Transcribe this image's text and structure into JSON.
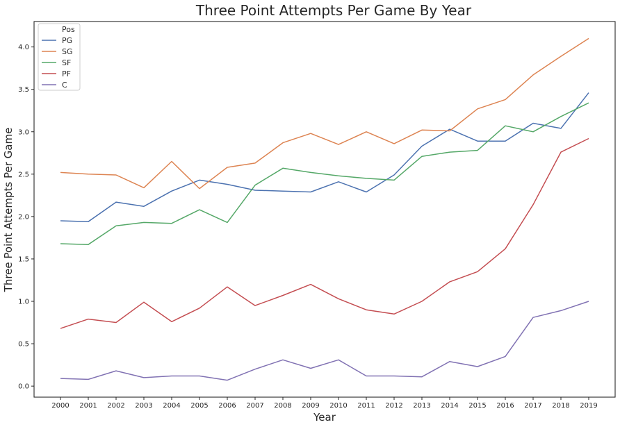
{
  "chart_data": {
    "type": "line",
    "title": "Three Point Attempts Per Game By Year",
    "xlabel": "Year",
    "ylabel": "Three Point Attempts Per Game",
    "x": [
      2000,
      2001,
      2002,
      2003,
      2004,
      2005,
      2006,
      2007,
      2008,
      2009,
      2010,
      2011,
      2012,
      2013,
      2014,
      2015,
      2016,
      2017,
      2018,
      2019
    ],
    "xticks": [
      "2000",
      "2001",
      "2002",
      "2003",
      "2004",
      "2005",
      "2006",
      "2007",
      "2008",
      "2009",
      "2010",
      "2011",
      "2012",
      "2013",
      "2014",
      "2015",
      "2016",
      "2017",
      "2018",
      "2019"
    ],
    "ylim": [
      -0.13,
      4.3
    ],
    "yticks": [
      0.0,
      0.5,
      1.0,
      1.5,
      2.0,
      2.5,
      3.0,
      3.5,
      4.0
    ],
    "ytick_labels": [
      "0.0",
      "0.5",
      "1.0",
      "1.5",
      "2.0",
      "2.5",
      "3.0",
      "3.5",
      "4.0"
    ],
    "grid": false,
    "legend": {
      "title": "Pos",
      "placement": "top-left"
    },
    "series": [
      {
        "name": "PG",
        "color": "#4c72b0",
        "values": [
          1.95,
          1.94,
          2.17,
          2.12,
          2.3,
          2.43,
          2.38,
          2.31,
          2.3,
          2.29,
          2.41,
          2.29,
          2.49,
          2.83,
          3.03,
          2.89,
          2.89,
          3.1,
          3.04,
          3.46
        ]
      },
      {
        "name": "SG",
        "color": "#dd8452",
        "values": [
          2.52,
          2.5,
          2.49,
          2.34,
          2.65,
          2.33,
          2.58,
          2.63,
          2.87,
          2.98,
          2.85,
          3.0,
          2.86,
          3.02,
          3.01,
          3.27,
          3.38,
          3.67,
          3.89,
          4.1
        ]
      },
      {
        "name": "SF",
        "color": "#55a868",
        "values": [
          1.68,
          1.67,
          1.89,
          1.93,
          1.92,
          2.08,
          1.93,
          2.37,
          2.57,
          2.52,
          2.48,
          2.45,
          2.43,
          2.71,
          2.76,
          2.78,
          3.07,
          3.0,
          3.18,
          3.34
        ]
      },
      {
        "name": "PF",
        "color": "#c44e52",
        "values": [
          0.68,
          0.79,
          0.75,
          0.99,
          0.76,
          0.92,
          1.17,
          0.95,
          1.07,
          1.2,
          1.03,
          0.9,
          0.85,
          1.0,
          1.23,
          1.35,
          1.62,
          2.14,
          2.76,
          2.92
        ]
      },
      {
        "name": "C",
        "color": "#8172b3",
        "values": [
          0.09,
          0.08,
          0.18,
          0.1,
          0.12,
          0.12,
          0.07,
          0.2,
          0.31,
          0.21,
          0.31,
          0.12,
          0.12,
          0.11,
          0.29,
          0.23,
          0.35,
          0.81,
          0.89,
          1.0
        ]
      }
    ]
  }
}
